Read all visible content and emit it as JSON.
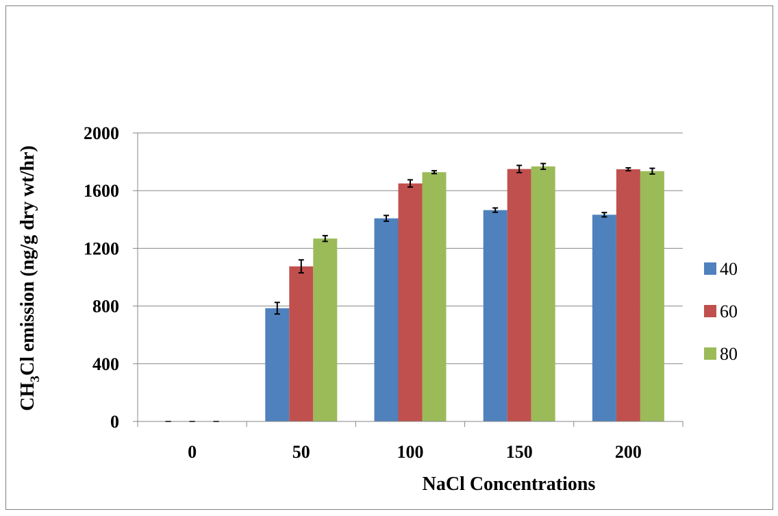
{
  "chart_data": {
    "type": "bar",
    "title": "",
    "xlabel": "NaCl Concentrations",
    "ylabel_parts": [
      "CH",
      "3",
      "Cl emission (ng/g  dry wt/hr)"
    ],
    "categories": [
      "0",
      "50",
      "100",
      "150",
      "200"
    ],
    "ylim": [
      0,
      2000
    ],
    "yticks": [
      0,
      400,
      800,
      1200,
      1600,
      2000
    ],
    "grid": true,
    "legend_position": "right",
    "series": [
      {
        "name": "40",
        "color": "#4f81bd",
        "values": [
          0,
          785,
          1408,
          1465,
          1433
        ],
        "errors": [
          0,
          40,
          20,
          15,
          15
        ]
      },
      {
        "name": "60",
        "color": "#c0504d",
        "values": [
          0,
          1075,
          1650,
          1750,
          1748
        ],
        "errors": [
          0,
          45,
          25,
          25,
          10
        ]
      },
      {
        "name": "80",
        "color": "#9bbb59",
        "values": [
          0,
          1268,
          1728,
          1768,
          1735
        ],
        "errors": [
          0,
          20,
          10,
          20,
          20
        ]
      }
    ]
  }
}
